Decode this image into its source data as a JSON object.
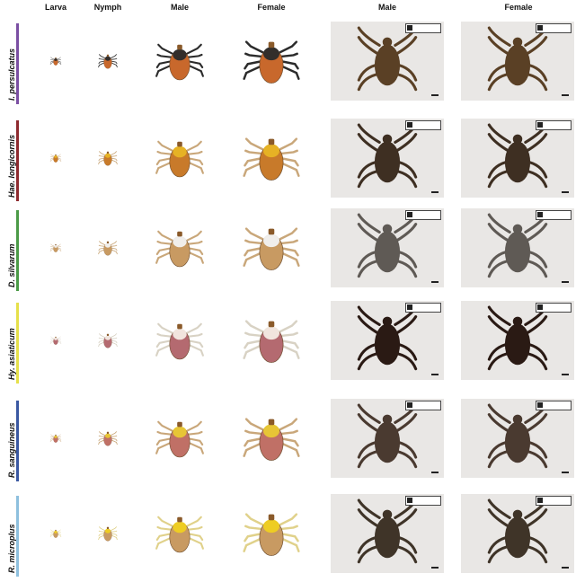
{
  "headers": [
    "Larva",
    "Nymph",
    "Male",
    "Female",
    "Male",
    "Female"
  ],
  "rows": [
    {
      "species": "I. persulcatus",
      "bar_color": "#7b4fa3",
      "body": "#c8682c",
      "scutum": "#2b2b2b",
      "legs": "#2b2b2b",
      "photo_body": "#5a4025"
    },
    {
      "species": "Hae. longicornis",
      "bar_color": "#8e2a2f",
      "body": "#c87a2a",
      "scutum": "#e8b525",
      "legs": "#c9a77a",
      "photo_body": "#3e2f22"
    },
    {
      "species": "D. silvarum",
      "bar_color": "#4b9a47",
      "body": "#c89a62",
      "scutum": "#f2f2f2",
      "legs": "#c9a77a",
      "photo_body": "#5f5a55"
    },
    {
      "species": "Hy. asiaticum",
      "bar_color": "#e6e04a",
      "body": "#b46a70",
      "scutum": "#f4ece4",
      "legs": "#d8d2c4",
      "photo_body": "#2a1a14"
    },
    {
      "species": "R. sanguineus",
      "bar_color": "#3a58a2",
      "body": "#c07066",
      "scutum": "#e9c934",
      "legs": "#c9a77a",
      "photo_body": "#4a3a30"
    },
    {
      "species": "R. microplus",
      "bar_color": "#8ec0de",
      "body": "#c89a62",
      "scutum": "#f0d020",
      "legs": "#e0d18a",
      "photo_body": "#3f3428"
    }
  ]
}
